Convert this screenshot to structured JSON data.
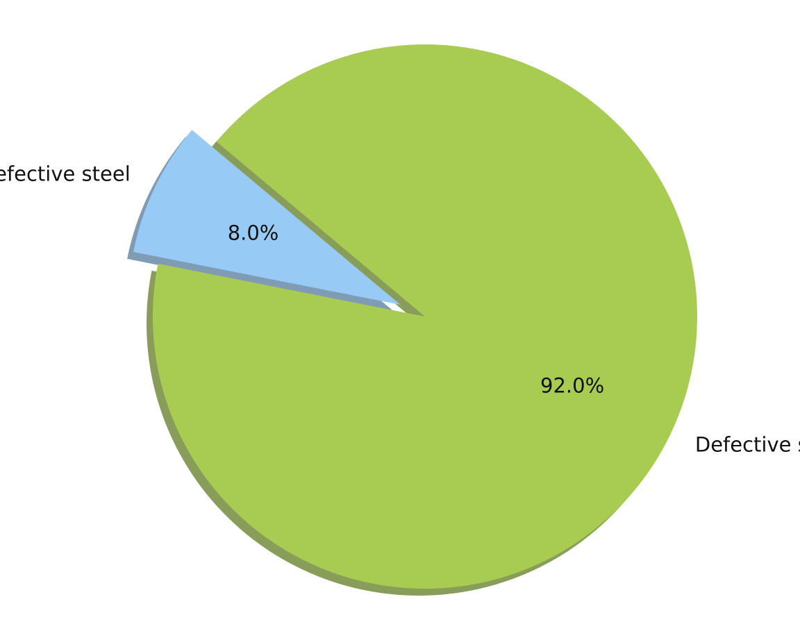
{
  "chart_data": {
    "type": "pie",
    "title": "",
    "start_angle_deg": 140,
    "direction": "counterclockwise",
    "shadow": true,
    "slices": [
      {
        "label": "Non defective steel",
        "value": 8.0,
        "pct_label": "8.0%",
        "color": "#97cbf5",
        "explode": 0.1
      },
      {
        "label": "Defective steel",
        "value": 92.0,
        "pct_label": "92.0%",
        "color": "#a8cc52",
        "explode": 0
      }
    ]
  }
}
